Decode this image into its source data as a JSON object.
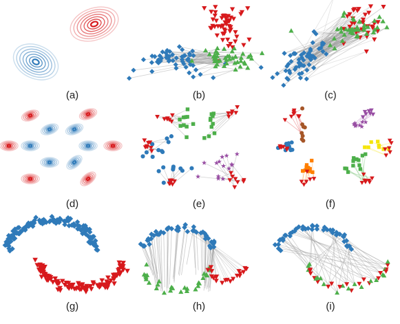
{
  "figure": {
    "panels": [
      {
        "id": "a",
        "label": "(a)",
        "content": "two Gaussian contour plots (blue and red)"
      },
      {
        "id": "b",
        "label": "(b)",
        "content": "source/target point clouds with transport lines"
      },
      {
        "id": "c",
        "label": "(c)",
        "content": "point clouds with dense transport lines"
      },
      {
        "id": "d",
        "label": "(d)",
        "content": "grid of red and blue Gaussian contours"
      },
      {
        "id": "e",
        "label": "(e)",
        "content": "clustered samples with couplings"
      },
      {
        "id": "f",
        "label": "(f)",
        "content": "colored clusters with couplings"
      },
      {
        "id": "g",
        "label": "(g)",
        "content": "two moons dataset (blue and red)"
      },
      {
        "id": "h",
        "label": "(h)",
        "content": "moons with vertical transport lines"
      },
      {
        "id": "i",
        "label": "(i)",
        "content": "moons with diagonal transport lines"
      }
    ]
  },
  "colors": {
    "blue": "#2f7ab9",
    "red": "#d7191c",
    "green": "#4daf4a",
    "purple": "#984ea3",
    "orange": "#ff7f00",
    "yellow": "#f5e50b",
    "brown": "#a65628",
    "line": "#9e9e9e"
  }
}
